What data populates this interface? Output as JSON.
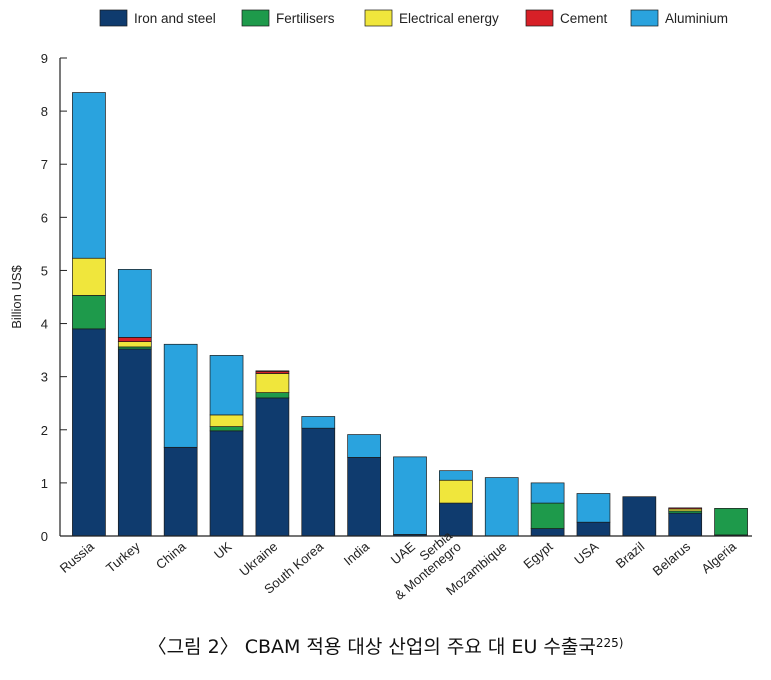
{
  "chart_data": {
    "type": "bar",
    "stacked": true,
    "title": "",
    "xlabel": "",
    "ylabel": "Billion US$",
    "ylim": [
      0,
      9
    ],
    "yticks": [
      0,
      1,
      2,
      3,
      4,
      5,
      6,
      7,
      8,
      9
    ],
    "legend_position": "top",
    "categories": [
      "Russia",
      "Turkey",
      "China",
      "UK",
      "Ukraine",
      "South Korea",
      "India",
      "UAE",
      "Serbia & Montenegro",
      "Mozambique",
      "Egypt",
      "USA",
      "Brazil",
      "Belarus",
      "Algeria"
    ],
    "category_lines": [
      [
        "Russia"
      ],
      [
        "Turkey"
      ],
      [
        "China"
      ],
      [
        "UK"
      ],
      [
        "Ukraine"
      ],
      [
        "South Korea"
      ],
      [
        "India"
      ],
      [
        "UAE"
      ],
      [
        "Serbia",
        "& Montenegro"
      ],
      [
        "Mozambique"
      ],
      [
        "Egypt"
      ],
      [
        "USA"
      ],
      [
        "Brazil"
      ],
      [
        "Belarus"
      ],
      [
        "Algeria"
      ]
    ],
    "series": [
      {
        "name": "Iron and steel",
        "color": "#0f3b6e",
        "values": [
          3.9,
          3.52,
          1.67,
          1.98,
          2.6,
          2.03,
          1.48,
          0.03,
          0.62,
          0.0,
          0.14,
          0.26,
          0.74,
          0.43,
          0.02
        ]
      },
      {
        "name": "Fertilisers",
        "color": "#1e9a4b",
        "values": [
          0.63,
          0.04,
          0.0,
          0.08,
          0.1,
          0.0,
          0.0,
          0.0,
          0.0,
          0.0,
          0.48,
          0.0,
          0.0,
          0.04,
          0.5
        ]
      },
      {
        "name": "Electrical energy",
        "color": "#f0e63c",
        "values": [
          0.7,
          0.1,
          0.0,
          0.22,
          0.36,
          0.0,
          0.0,
          0.0,
          0.43,
          0.0,
          0.0,
          0.0,
          0.0,
          0.04,
          0.0
        ]
      },
      {
        "name": "Cement",
        "color": "#d72027",
        "values": [
          0.0,
          0.08,
          0.0,
          0.0,
          0.04,
          0.0,
          0.0,
          0.0,
          0.0,
          0.0,
          0.0,
          0.0,
          0.0,
          0.02,
          0.0
        ]
      },
      {
        "name": "Aluminium",
        "color": "#2aa3de",
        "values": [
          3.12,
          1.28,
          1.94,
          1.12,
          0.01,
          0.22,
          0.43,
          1.46,
          0.18,
          1.1,
          0.38,
          0.54,
          0.0,
          0.0,
          0.0
        ]
      }
    ]
  },
  "caption": {
    "text": "〈그림 2〉 CBAM 적용 대상 산업의 주요 대 EU 수출국",
    "note": "225)"
  }
}
